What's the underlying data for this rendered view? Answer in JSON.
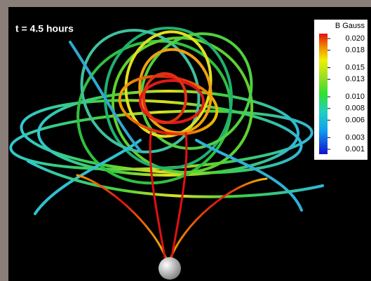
{
  "label": "t = 4.5 hours",
  "colorbar": {
    "title": "B Gauss",
    "ticks": [
      {
        "value": 0.02,
        "label": "0.020"
      },
      {
        "value": 0.018,
        "label": "0.018"
      },
      {
        "value": 0.015,
        "label": "0.015"
      },
      {
        "value": 0.013,
        "label": "0.013"
      },
      {
        "value": 0.01,
        "label": "0.010"
      },
      {
        "value": 0.008,
        "label": "0.008"
      },
      {
        "value": 0.006,
        "label": "0.006"
      },
      {
        "value": 0.003,
        "label": "0.003"
      },
      {
        "value": 0.001,
        "label": "0.001"
      }
    ]
  }
}
